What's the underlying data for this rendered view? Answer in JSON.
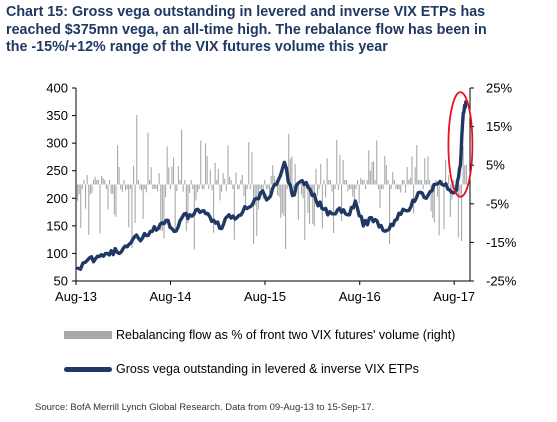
{
  "title_lines": [
    "Chart 15: Gross vega outstanding in levered and inverse VIX ETPs has",
    "reached $375mn vega, an all-time high. The rebalance flow has been in",
    "the -15%/+12% range of the VIX futures volume this year"
  ],
  "legend": {
    "bars": "Rebalancing flow as %  of front two VIX futures' volume (right)",
    "line": "Gross vega outstanding in levered & inverse VIX ETPs"
  },
  "source": "Source: BofA Merrill Lynch Global Research. Data from 09-Aug-13 to 15-Sep-17.",
  "colors": {
    "line": "#1f3864",
    "bars": "#a7a9ac",
    "highlight": "#e4151f",
    "title": "#1f3864"
  },
  "chart_data": {
    "type": "line",
    "x_tick_labels": [
      "Aug-13",
      "Aug-14",
      "Aug-15",
      "Aug-16",
      "Aug-17"
    ],
    "left_axis": {
      "ticks": [
        "400",
        "350",
        "300",
        "250",
        "200",
        "150",
        "100",
        "50"
      ],
      "range": [
        50,
        400
      ]
    },
    "right_axis": {
      "ticks": [
        "25%",
        "15%",
        "5%",
        "-5%",
        "-15%",
        "-25%"
      ],
      "range": [
        -25,
        25
      ]
    },
    "grid": false,
    "legend_position": "bottom",
    "highlight": "red ellipse around the latest rise (Aug-17 to Sep-17)",
    "series": [
      {
        "name": "Gross vega outstanding in levered & inverse VIX ETPs",
        "axis": "left",
        "x": [
          "2013-08-09",
          "2013-09-15",
          "2013-10-15",
          "2013-11-15",
          "2013-12-15",
          "2014-01-15",
          "2014-02-15",
          "2014-03-15",
          "2014-04-15",
          "2014-05-15",
          "2014-06-15",
          "2014-07-15",
          "2014-08-15",
          "2014-09-15",
          "2014-10-15",
          "2014-11-15",
          "2014-12-15",
          "2015-01-15",
          "2015-02-15",
          "2015-03-15",
          "2015-04-15",
          "2015-05-15",
          "2015-06-15",
          "2015-07-15",
          "2015-08-15",
          "2015-09-15",
          "2015-10-15",
          "2015-11-15",
          "2015-12-15",
          "2016-01-15",
          "2016-02-15",
          "2016-03-15",
          "2016-04-15",
          "2016-05-15",
          "2016-06-15",
          "2016-07-15",
          "2016-08-15",
          "2016-09-15",
          "2016-10-15",
          "2016-11-15",
          "2016-12-15",
          "2017-01-15",
          "2017-02-15",
          "2017-03-15",
          "2017-04-15",
          "2017-05-15",
          "2017-06-15",
          "2017-07-15",
          "2017-08-10",
          "2017-08-25",
          "2017-09-05",
          "2017-09-15"
        ],
        "values": [
          73,
          88,
          90,
          95,
          105,
          100,
          112,
          130,
          128,
          140,
          145,
          160,
          140,
          165,
          170,
          180,
          172,
          160,
          145,
          170,
          165,
          185,
          190,
          210,
          200,
          225,
          265,
          205,
          230,
          220,
          195,
          180,
          172,
          182,
          170,
          195,
          150,
          165,
          148,
          142,
          160,
          180,
          185,
          210,
          200,
          225,
          225,
          215,
          215,
          260,
          355,
          375
        ]
      },
      {
        "name": "Rebalancing flow as %  of front two VIX futures' volume (right)",
        "axis": "right",
        "type": "bar",
        "typical_range_percent": [
          -15,
          12
        ]
      }
    ]
  }
}
